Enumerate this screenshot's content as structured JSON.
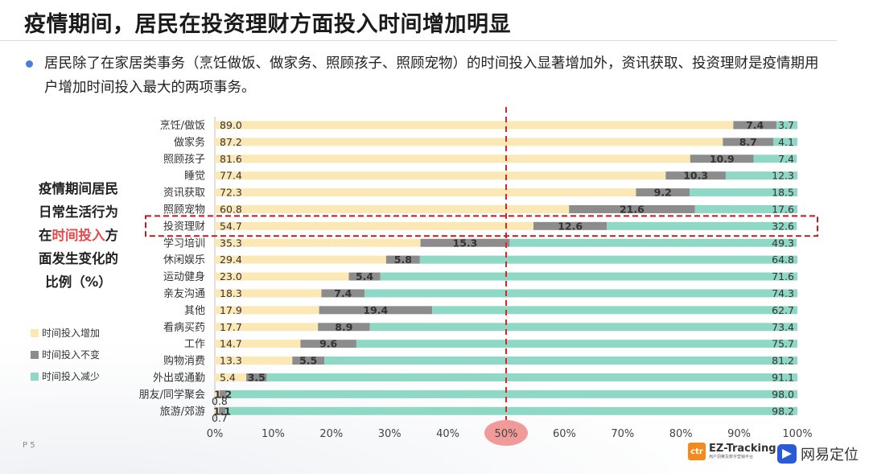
{
  "page": {
    "title": "疫情期间，居民在投资理财方面投入时间增加明显",
    "bullet": "居民除了在家居类事务（烹饪做饭、做家务、照顾孩子、照顾宠物）的时间投入显著增加外，资讯获取、投资理财是疫情期用户增加时间投入最大的两项事务。",
    "side_caption": {
      "line1": "疫情期间居民",
      "line2": "日常生活行为",
      "line3_pre": "在",
      "line3_highlight": "时间投入",
      "line3_post": "方",
      "line4": "面发生变化的",
      "line5": "比例（%）"
    },
    "page_number": "P 5",
    "logo_ez": {
      "badge": "ctr",
      "title": "EZ-Tracking",
      "subtitle": "用户洞察及数字营销平台"
    },
    "logo_wy": {
      "text": "网易定位"
    }
  },
  "colors": {
    "increase": "#fce8b5",
    "unchanged": "#8c8c8c",
    "decrease": "#8fd8c6",
    "highlight_border": "#c0181d",
    "highlight_text": "#e84a4a",
    "midline": "#d6262b",
    "fifty_marker": "#f19a9a"
  },
  "chart_data": {
    "type": "bar",
    "orientation": "horizontal",
    "stacked": "percent",
    "categories": [
      "烹饪/做饭",
      "做家务",
      "照顾孩子",
      "睡觉",
      "资讯获取",
      "照顾宠物",
      "投资理财",
      "学习培训",
      "休闲娱乐",
      "运动健身",
      "亲友沟通",
      "其他",
      "看病买药",
      "工作",
      "购物消费",
      "外出或通勤",
      "朋友/同学聚会",
      "旅游/郊游"
    ],
    "series": [
      {
        "name": "时间投入增加",
        "values": [
          89.0,
          87.2,
          81.6,
          77.4,
          72.3,
          60.8,
          54.7,
          35.3,
          29.4,
          23.0,
          18.3,
          17.9,
          17.7,
          14.7,
          13.3,
          5.4,
          0.8,
          0.7
        ]
      },
      {
        "name": "时间投入不变",
        "values": [
          7.4,
          8.7,
          10.9,
          10.3,
          9.2,
          21.6,
          12.6,
          15.3,
          5.8,
          5.4,
          7.4,
          19.4,
          8.9,
          9.6,
          5.5,
          3.5,
          1.2,
          1.1
        ]
      },
      {
        "name": "时间投入减少",
        "values": [
          3.7,
          4.1,
          7.4,
          12.3,
          18.5,
          17.6,
          32.6,
          49.3,
          64.8,
          71.6,
          74.3,
          62.7,
          73.4,
          75.7,
          81.2,
          91.1,
          98.0,
          98.2
        ]
      }
    ],
    "value_labels": [
      [
        "89.0",
        "7.4",
        "3.7"
      ],
      [
        "87.2",
        "8.7",
        "4.1"
      ],
      [
        "81.6",
        "10.9",
        "7.4"
      ],
      [
        "77.4",
        "10.3",
        "12.3"
      ],
      [
        "72.3",
        "9.2",
        "18.5"
      ],
      [
        "60.8",
        "21.6",
        "17.6"
      ],
      [
        "54.7",
        "12.6",
        "32.6"
      ],
      [
        "35.3",
        "15.3",
        "49.3"
      ],
      [
        "29.4",
        "5.8",
        "64.8"
      ],
      [
        "23.0",
        "5.4",
        "71.6"
      ],
      [
        "18.3",
        "7.4",
        "74.3"
      ],
      [
        "17.9",
        "19.4",
        "62.7"
      ],
      [
        "17.7",
        "8.9",
        "73.4"
      ],
      [
        "14.7",
        "9.6",
        "75.7"
      ],
      [
        "13.3",
        "5.5",
        "81.2"
      ],
      [
        "5.4",
        "3.5",
        "91.1"
      ],
      [
        "0.8",
        "1.2",
        "98.0"
      ],
      [
        "0.7",
        "1.1",
        "98.2"
      ]
    ],
    "x_ticks": [
      "0%",
      "10%",
      "20%",
      "30%",
      "40%",
      "50%",
      "60%",
      "70%",
      "80%",
      "90%",
      "100%"
    ],
    "xlim": [
      0,
      100
    ],
    "reference_line": 50,
    "highlighted_category": "投资理财",
    "legend_position": "left"
  }
}
